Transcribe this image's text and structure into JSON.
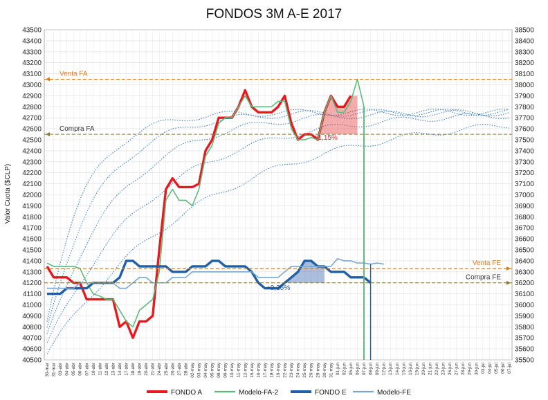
{
  "chart_data": {
    "type": "line",
    "title": "FONDOS 3M A-E 2017",
    "ylabel": "Valor Cuota ($CLP)",
    "ylim_left": [
      40500,
      43500
    ],
    "ylim_right": [
      35500,
      38500
    ],
    "y_ticks_left": [
      "40500",
      "40600",
      "40700",
      "40800",
      "40900",
      "41000",
      "41100",
      "41200",
      "41300",
      "41400",
      "41500",
      "41600",
      "41700",
      "41800",
      "41900",
      "42000",
      "42100",
      "42200",
      "42300",
      "42400",
      "42500",
      "42600",
      "42700",
      "42800",
      "42900",
      "43000",
      "43100",
      "43200",
      "43300",
      "43400",
      "43500"
    ],
    "y_ticks_right": [
      "35500",
      "35600",
      "35700",
      "35800",
      "35900",
      "36000",
      "36100",
      "36200",
      "36300",
      "36400",
      "36500",
      "36600",
      "36700",
      "36800",
      "36900",
      "37000",
      "37100",
      "37200",
      "37300",
      "37400",
      "37500",
      "37600",
      "37700",
      "37800",
      "37900",
      "38000",
      "38100",
      "38200",
      "38300",
      "38400",
      "38500"
    ],
    "x_labels": [
      "30-mar",
      "31-mar",
      "03-abr",
      "04-abr",
      "05-abr",
      "06-abr",
      "07-abr",
      "10-abr",
      "11-abr",
      "12-abr",
      "13-abr",
      "14-abr",
      "17-abr",
      "18-abr",
      "19-abr",
      "20-abr",
      "21-abr",
      "24-abr",
      "25-abr",
      "26-abr",
      "27-abr",
      "28-abr",
      "02-may",
      "03-may",
      "04-may",
      "05-may",
      "08-may",
      "09-may",
      "10-may",
      "11-may",
      "12-may",
      "15-may",
      "16-may",
      "17-may",
      "18-may",
      "19-may",
      "22-may",
      "23-may",
      "24-may",
      "25-may",
      "26-may",
      "29-may",
      "30-may",
      "31-may",
      "01-jun",
      "02-jun",
      "05-jun",
      "06-jun",
      "07-jun",
      "08-jun",
      "09-jun",
      "12-jun",
      "13-jun",
      "14-jun",
      "15-jun",
      "16-jun",
      "19-jun",
      "20-jun",
      "21-jun",
      "22-jun",
      "23-jun",
      "26-jun",
      "27-jun",
      "28-jun",
      "29-jun",
      "30-jun",
      "03-jul",
      "04-jul",
      "05-jul",
      "06-jul",
      "07-jul"
    ],
    "series": [
      {
        "name": "FONDO A",
        "axis": "left",
        "color": "#e8191e",
        "values": [
          41350,
          41250,
          41250,
          41250,
          41200,
          41200,
          41050,
          41050,
          41050,
          41050,
          41050,
          40800,
          40850,
          40700,
          40850,
          40850,
          40900,
          41500,
          42050,
          42150,
          42070,
          42070,
          42070,
          42100,
          42400,
          42500,
          42700,
          42700,
          42700,
          42800,
          42950,
          42800,
          42750,
          42750,
          42750,
          42800,
          42900,
          42650,
          42500,
          42550,
          42550,
          42500,
          42750,
          42900,
          42800,
          42800,
          42900
        ]
      },
      {
        "name": "Modelo-FA-2",
        "axis": "left",
        "color": "#5dba7c",
        "values": [
          41380,
          41350,
          41350,
          41350,
          41350,
          41330,
          41200,
          41100,
          41080,
          41050,
          41050,
          40950,
          40850,
          40800,
          40950,
          41000,
          41050,
          41300,
          41950,
          42050,
          41950,
          41950,
          41900,
          42050,
          42350,
          42450,
          42650,
          42700,
          42700,
          42800,
          42900,
          42800,
          42800,
          42800,
          42800,
          42850,
          42850,
          42600,
          42500,
          42500,
          42520,
          42500,
          42750,
          42900,
          42750,
          42750,
          42850,
          43050,
          42800
        ]
      },
      {
        "name": "FONDO E",
        "axis": "right",
        "color": "#1f5fa6",
        "values": [
          36100,
          36100,
          36100,
          36150,
          36150,
          36150,
          36150,
          36200,
          36200,
          36200,
          36200,
          36250,
          36400,
          36400,
          36350,
          36350,
          36350,
          36350,
          36350,
          36300,
          36300,
          36300,
          36350,
          36350,
          36350,
          36400,
          36400,
          36350,
          36350,
          36350,
          36350,
          36300,
          36200,
          36150,
          36150,
          36150,
          36200,
          36250,
          36300,
          36400,
          36400,
          36350,
          36350,
          36300,
          36300,
          36300,
          36250,
          36250,
          36250,
          36200
        ]
      },
      {
        "name": "Modelo-FE",
        "axis": "right",
        "color": "#7aa7cf",
        "values": [
          36150,
          36150,
          36150,
          36150,
          36150,
          36200,
          36200,
          36200,
          36200,
          36200,
          36200,
          36150,
          36150,
          36200,
          36250,
          36250,
          36200,
          36200,
          36200,
          36250,
          36250,
          36250,
          36300,
          36300,
          36300,
          36300,
          36300,
          36300,
          36300,
          36300,
          36300,
          36300,
          36250,
          36250,
          36250,
          36250,
          36300,
          36350,
          36350,
          36350,
          36350,
          36350,
          36350,
          36350,
          36420,
          36400,
          36400,
          36380,
          36380,
          36370,
          36380,
          36370
        ]
      }
    ],
    "reference_lines": [
      {
        "label": "Venta FA",
        "axis": "left",
        "value": 43050,
        "color": "#e07a1a"
      },
      {
        "label": "Compra FA",
        "axis": "left",
        "value": 42550,
        "color": "#8a7a3a"
      },
      {
        "label": "Venta FE",
        "axis": "right",
        "value": 36330,
        "color": "#e07a1a"
      },
      {
        "label": "Compra FE",
        "axis": "right",
        "value": 36200,
        "color": "#8a7a3a"
      }
    ],
    "annotations": [
      {
        "text": "+1,15%",
        "color": "#d7262d"
      },
      {
        "text": "+0,36%",
        "color": "#1f4e8c"
      }
    ],
    "legend_position": "bottom",
    "grid": true
  }
}
